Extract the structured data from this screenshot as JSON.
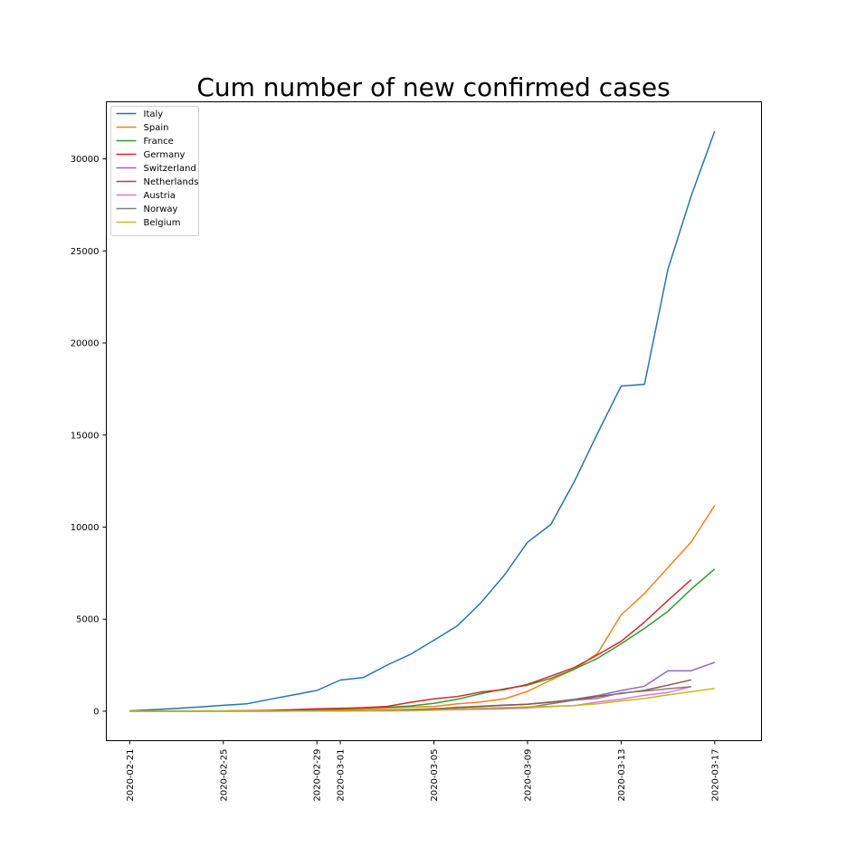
{
  "chart_data": {
    "type": "line",
    "title": "Cum number of new confirmed cases",
    "xlabel": "",
    "ylabel": "",
    "x": [
      "2020-02-21",
      "2020-02-22",
      "2020-02-23",
      "2020-02-24",
      "2020-02-25",
      "2020-02-26",
      "2020-02-27",
      "2020-02-28",
      "2020-02-29",
      "2020-03-01",
      "2020-03-02",
      "2020-03-03",
      "2020-03-04",
      "2020-03-05",
      "2020-03-06",
      "2020-03-07",
      "2020-03-08",
      "2020-03-09",
      "2020-03-10",
      "2020-03-11",
      "2020-03-12",
      "2020-03-13",
      "2020-03-14",
      "2020-03-15",
      "2020-03-16",
      "2020-03-17",
      "2020-03-18"
    ],
    "xticks": [
      "2020-02-21",
      "2020-02-25",
      "2020-02-29",
      "2020-03-01",
      "2020-03-05",
      "2020-03-09",
      "2020-03-13",
      "2020-03-17"
    ],
    "yticks": [
      0,
      5000,
      10000,
      15000,
      20000,
      25000,
      30000
    ],
    "ylim": [
      -1600,
      33100
    ],
    "xlim": [
      "2020-02-20",
      "2020-03-19"
    ],
    "legend_position": "top-left",
    "grid": false,
    "series": [
      {
        "name": "Italy",
        "color": "#1f77b4",
        "values": [
          20,
          79,
          150,
          229,
          322,
          400,
          650,
          888,
          1128,
          1694,
          1835,
          2502,
          3089,
          3858,
          4636,
          5883,
          7375,
          9172,
          10149,
          12462,
          15113,
          17660,
          17750,
          24000,
          28000,
          31506,
          null
        ]
      },
      {
        "name": "Spain",
        "color": "#ff7f0e",
        "values": [
          2,
          2,
          2,
          2,
          6,
          13,
          15,
          32,
          45,
          84,
          120,
          165,
          222,
          259,
          400,
          500,
          673,
          1073,
          1695,
          2277,
          3146,
          5232,
          6391,
          7798,
          9191,
          11178,
          null
        ]
      },
      {
        "name": "France",
        "color": "#2ca02c",
        "values": [
          12,
          12,
          12,
          12,
          14,
          18,
          38,
          57,
          100,
          130,
          191,
          212,
          285,
          423,
          653,
          949,
          1209,
          1412,
          1784,
          2281,
          2876,
          3661,
          4499,
          5423,
          6633,
          7730,
          null
        ]
      },
      {
        "name": "Germany",
        "color": "#d62728",
        "values": [
          16,
          16,
          16,
          16,
          18,
          26,
          48,
          79,
          130,
          159,
          196,
          262,
          482,
          670,
          799,
          1040,
          1176,
          1457,
          1908,
          2369,
          3062,
          3795,
          4838,
          6012,
          7156,
          null,
          null
        ]
      },
      {
        "name": "Switzerland",
        "color": "#9467bd",
        "values": [
          0,
          0,
          0,
          0,
          1,
          1,
          8,
          8,
          18,
          27,
          42,
          56,
          90,
          114,
          214,
          268,
          337,
          374,
          491,
          652,
          855,
          1125,
          1359,
          2200,
          2200,
          2650,
          null
        ]
      },
      {
        "name": "Netherlands",
        "color": "#8c564b",
        "values": [
          0,
          0,
          0,
          0,
          0,
          1,
          2,
          7,
          10,
          18,
          24,
          38,
          82,
          128,
          188,
          265,
          321,
          382,
          503,
          614,
          804,
          959,
          1135,
          1413,
          1705,
          null,
          null
        ]
      },
      {
        "name": "Austria",
        "color": "#e377c2",
        "values": [
          0,
          0,
          0,
          0,
          2,
          2,
          3,
          5,
          10,
          10,
          18,
          29,
          41,
          55,
          79,
          104,
          131,
          182,
          246,
          302,
          504,
          655,
          860,
          1018,
          1332,
          null,
          null
        ]
      },
      {
        "name": "Norway",
        "color": "#7f7f7f",
        "values": [
          0,
          0,
          0,
          0,
          0,
          1,
          1,
          6,
          15,
          19,
          25,
          32,
          56,
          87,
          108,
          147,
          176,
          205,
          400,
          598,
          702,
          996,
          1090,
          1221,
          1333,
          null,
          null
        ]
      },
      {
        "name": "Belgium",
        "color": "#bcbd22",
        "values": [
          1,
          1,
          1,
          1,
          1,
          1,
          1,
          1,
          1,
          2,
          8,
          13,
          23,
          50,
          109,
          169,
          200,
          239,
          267,
          314,
          399,
          559,
          689,
          886,
          1058,
          1243,
          null
        ]
      }
    ]
  }
}
